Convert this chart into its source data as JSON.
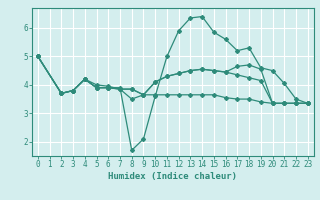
{
  "background_color": "#d4eeee",
  "grid_color": "#ffffff",
  "line_color": "#2e8b7a",
  "xlabel": "Humidex (Indice chaleur)",
  "xlim": [
    -0.5,
    23.5
  ],
  "ylim": [
    1.5,
    6.7
  ],
  "yticks": [
    2,
    3,
    4,
    5,
    6
  ],
  "xticks": [
    0,
    1,
    2,
    3,
    4,
    5,
    6,
    7,
    8,
    9,
    10,
    11,
    12,
    13,
    14,
    15,
    16,
    17,
    18,
    19,
    20,
    21,
    22,
    23
  ],
  "lines": [
    {
      "x": [
        0,
        2,
        3,
        4,
        5,
        6,
        7,
        8,
        9,
        10,
        11,
        12,
        13,
        14,
        15,
        16,
        17,
        18,
        19,
        20,
        21,
        22,
        23
      ],
      "y": [
        5.0,
        3.7,
        3.8,
        4.2,
        3.9,
        3.9,
        3.9,
        1.7,
        2.1,
        3.6,
        5.0,
        5.9,
        6.35,
        6.4,
        5.85,
        5.6,
        5.2,
        5.3,
        4.6,
        4.5,
        4.05,
        3.5,
        3.35
      ]
    },
    {
      "x": [
        0,
        2,
        3,
        4,
        5,
        6,
        7,
        8,
        9,
        10,
        11,
        12,
        13,
        14,
        15,
        16,
        17,
        18,
        19,
        20,
        21,
        22,
        23
      ],
      "y": [
        5.0,
        3.7,
        3.8,
        4.2,
        3.9,
        3.9,
        3.85,
        3.85,
        3.65,
        4.1,
        4.3,
        4.4,
        4.5,
        4.55,
        4.5,
        4.45,
        4.65,
        4.7,
        4.55,
        3.35,
        3.35,
        3.35,
        3.35
      ]
    },
    {
      "x": [
        0,
        2,
        3,
        4,
        5,
        6,
        7,
        8,
        9,
        10,
        11,
        12,
        13,
        14,
        15,
        16,
        17,
        18,
        19,
        20,
        21,
        22,
        23
      ],
      "y": [
        5.0,
        3.7,
        3.8,
        4.2,
        3.9,
        3.9,
        3.85,
        3.85,
        3.65,
        4.1,
        4.3,
        4.4,
        4.5,
        4.55,
        4.5,
        4.45,
        4.35,
        4.25,
        4.15,
        3.35,
        3.35,
        3.35,
        3.35
      ]
    },
    {
      "x": [
        0,
        2,
        3,
        4,
        5,
        6,
        7,
        8,
        9,
        10,
        11,
        12,
        13,
        14,
        15,
        16,
        17,
        18,
        19,
        20,
        21,
        22,
        23
      ],
      "y": [
        5.0,
        3.7,
        3.8,
        4.2,
        4.0,
        3.95,
        3.85,
        3.5,
        3.65,
        3.65,
        3.65,
        3.65,
        3.65,
        3.65,
        3.65,
        3.55,
        3.5,
        3.5,
        3.4,
        3.35,
        3.35,
        3.35,
        3.35
      ]
    }
  ]
}
